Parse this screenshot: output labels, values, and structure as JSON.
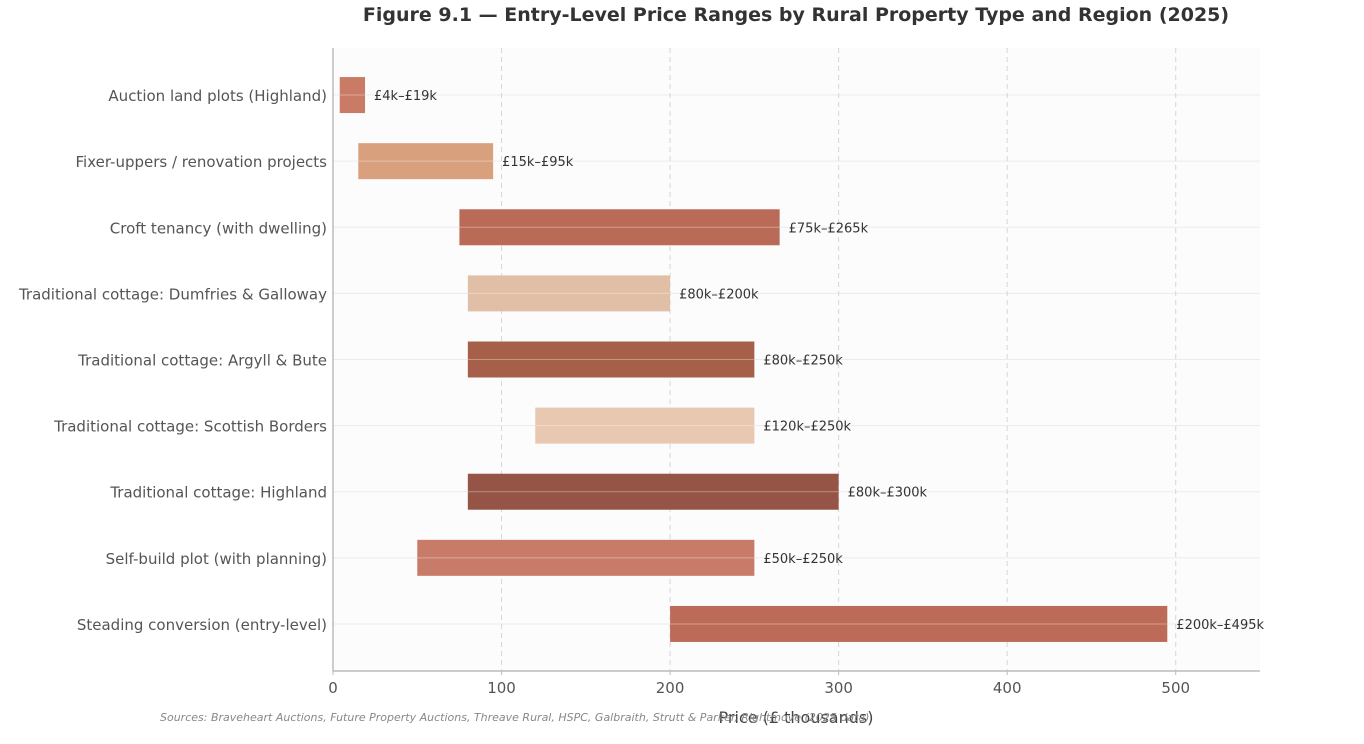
{
  "chart_data": {
    "type": "bar",
    "orientation": "horizontal-range",
    "title": "Figure 9.1  —  Entry-Level Price Ranges by Rural Property Type and Region (2025)",
    "xlabel": "Price (£ thousands)",
    "ylabel": "",
    "xlim": [
      0,
      550
    ],
    "xticks": [
      0,
      100,
      200,
      300,
      400,
      500
    ],
    "grid": "vertical dashed",
    "categories": [
      "Auction land plots (Highland)",
      "Fixer-uppers / renovation projects",
      "Croft tenancy (with dwelling)",
      "Traditional cottage: Dumfries & Galloway",
      "Traditional cottage: Argyll & Bute",
      "Traditional cottage: Scottish Borders",
      "Traditional cottage: Highland",
      "Self-build plot (with planning)",
      "Steading conversion (entry-level)"
    ],
    "ranges": [
      {
        "low": 4,
        "high": 19,
        "label": "£4k–£19k",
        "color": "#c97b66"
      },
      {
        "low": 15,
        "high": 95,
        "label": "£15k–£95k",
        "color": "#d9a07e"
      },
      {
        "low": 75,
        "high": 265,
        "label": "£75k–£265k",
        "color": "#ba6b58"
      },
      {
        "low": 80,
        "high": 200,
        "label": "£80k–£200k",
        "color": "#e1bfa7"
      },
      {
        "low": 80,
        "high": 250,
        "label": "£80k–£250k",
        "color": "#a65f48"
      },
      {
        "low": 120,
        "high": 250,
        "label": "£120k–£250k",
        "color": "#e8c8b0"
      },
      {
        "low": 80,
        "high": 300,
        "label": "£80k–£300k",
        "color": "#955445"
      },
      {
        "low": 50,
        "high": 250,
        "label": "£50k–£250k",
        "color": "#c97b6a"
      },
      {
        "low": 200,
        "high": 495,
        "label": "£200k–£495k",
        "color": "#bc6b59"
      }
    ]
  },
  "source_note": "Sources: Braveheart Auctions, Future Property Auctions, Threave Rural, HSPC, Galbraith, Strutt & Parker, Rightmove (2025 data)"
}
